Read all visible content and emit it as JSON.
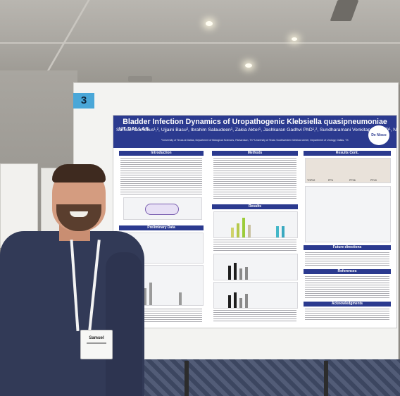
{
  "scene": {
    "table_number": "3",
    "badge_name": "Samuel"
  },
  "poster": {
    "title": "Bladder Infection Dynamics of Uropathogenic Klebsiella quasipneumoniae",
    "authors": "Samuel Cornelius¹,², Ujjaini Basu², Ibrahim Salaudeen¹, Zakia Akter¹, Jashkaran Gadhvi PhD¹,², Sundharamani Venkitapathi PhD¹, Nicole De Nisco PhD¹,²",
    "affiliation": "¹University of Texas at Dallas, Department of Biological Sciences, Richardson, TX  ²University of Texas Southwestern Medical center, Department of Urology, Dallas, TX",
    "ut_logo": "UT DALLAS",
    "lab_logo": "De Nisco Lab",
    "sections": {
      "introduction": "Introduction",
      "methods": "Methods",
      "results_cont": "Results Cont.",
      "results": "Results",
      "preliminary_data": "Preliminary Data",
      "future_directions": "Future directions",
      "references": "References",
      "acknowledgments": "Acknowledgments"
    },
    "strain_labels": [
      "TOP52",
      "PP6",
      "PP26",
      "PP43"
    ]
  },
  "colors": {
    "poster_blue": "#2b3a8f",
    "table_tag": "#4aa7d8",
    "shirt": "#323a57"
  }
}
